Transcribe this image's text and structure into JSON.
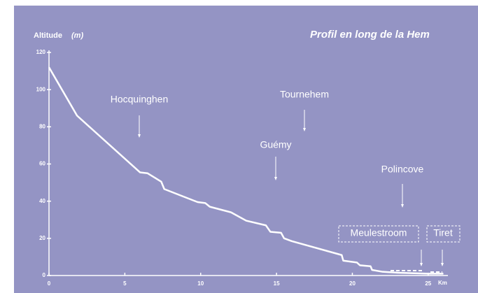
{
  "chart_data": {
    "type": "line",
    "title": "Profil en long de la Hem",
    "y_label": "Altitude",
    "y_unit": "(m)",
    "x_label": "Km",
    "x": [
      0,
      1.85,
      6.0,
      6.5,
      7.4,
      7.6,
      9.8,
      10.3,
      10.6,
      12.0,
      13.0,
      14.3,
      14.6,
      15.3,
      15.5,
      16.0,
      19.3,
      19.4,
      20.3,
      20.5,
      21.2,
      21.3,
      22.0,
      23.0,
      25.0,
      26.0
    ],
    "series": [
      {
        "name": "Altitude",
        "color": "#ffffff",
        "values": [
          112,
          86,
          55.5,
          55,
          50.5,
          46.5,
          39.5,
          39,
          37,
          34,
          29.5,
          27,
          23.5,
          23,
          20,
          18.5,
          11,
          8,
          7,
          5.5,
          5,
          3,
          2,
          1.5,
          1,
          1
        ]
      }
    ],
    "xlim": [
      0,
      26.3
    ],
    "ylim": [
      0,
      120
    ],
    "xticks": [
      0,
      5,
      10,
      15,
      20,
      25
    ],
    "yticks": [
      0,
      20,
      40,
      60,
      80,
      100,
      120
    ],
    "annotations": [
      "Hocquinghen",
      "Tournehem",
      "Guémy",
      "Polincove",
      "Meulestroom",
      "Tiret"
    ]
  }
}
